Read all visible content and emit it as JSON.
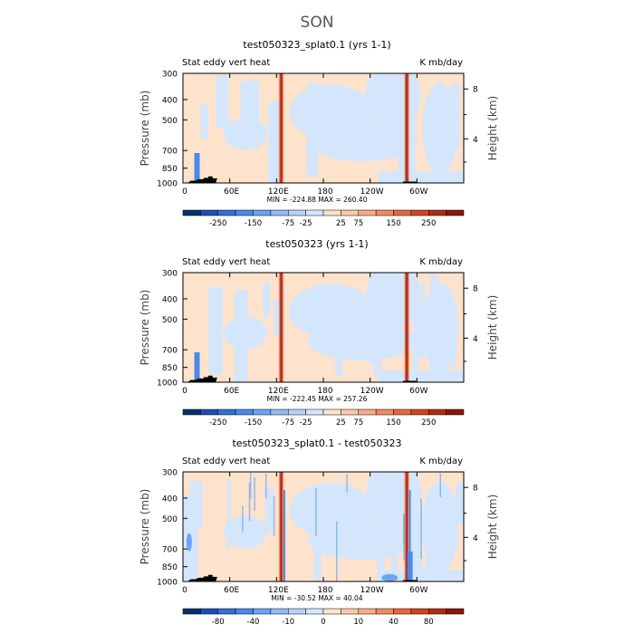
{
  "page_title": "SON",
  "chart_data": [
    {
      "type": "heatmap",
      "title": "test050323_splat0.1 (yrs 1-1)",
      "left_label": "Stat eddy vert heat",
      "right_label": "K mb/day",
      "ylabel": "Pressure (mb)",
      "ylabel_right": "Height (km)",
      "y_ticks": [
        300,
        400,
        500,
        700,
        850,
        1000
      ],
      "y_ticks_right": [
        8,
        4
      ],
      "x_ticks": [
        "0",
        "60E",
        "120E",
        "180",
        "120W",
        "60W"
      ],
      "xlim": [
        0,
        360
      ],
      "ylim": [
        1000,
        300
      ],
      "stats": "MIN = -224.88   MAX = 260.40",
      "colorbar_labels": [
        "-250",
        "-150",
        "-75",
        "-25",
        "25",
        "75",
        "150",
        "250"
      ],
      "features": [
        {
          "lon": 126,
          "value": 260.4
        },
        {
          "lon": 287,
          "value": 200
        },
        {
          "lon": 18,
          "value": -224.88
        }
      ]
    },
    {
      "type": "heatmap",
      "title": "test050323 (yrs 1-1)",
      "left_label": "Stat eddy vert heat",
      "right_label": "K mb/day",
      "ylabel": "Pressure (mb)",
      "ylabel_right": "Height (km)",
      "y_ticks": [
        300,
        400,
        500,
        700,
        850,
        1000
      ],
      "y_ticks_right": [
        8,
        4
      ],
      "x_ticks": [
        "0",
        "60E",
        "120E",
        "180",
        "120W",
        "60W"
      ],
      "xlim": [
        0,
        360
      ],
      "ylim": [
        1000,
        300
      ],
      "stats": "MIN = -222.45   MAX = 257.26",
      "colorbar_labels": [
        "-250",
        "-150",
        "-75",
        "-25",
        "25",
        "75",
        "150",
        "250"
      ],
      "features": [
        {
          "lon": 126,
          "value": 257.26
        },
        {
          "lon": 287,
          "value": 200
        },
        {
          "lon": 18,
          "value": -222.45
        }
      ]
    },
    {
      "type": "heatmap",
      "title": "test050323_splat0.1 - test050323",
      "left_label": "Stat eddy vert heat",
      "right_label": "K mb/day",
      "ylabel": "Pressure (mb)",
      "ylabel_right": "Height (km)",
      "y_ticks": [
        300,
        400,
        500,
        700,
        850,
        1000
      ],
      "y_ticks_right": [
        8,
        4
      ],
      "x_ticks": [
        "0",
        "60E",
        "120E",
        "180",
        "120W",
        "60W"
      ],
      "xlim": [
        0,
        360
      ],
      "ylim": [
        1000,
        300
      ],
      "stats": "MIN = -30.52   MAX =  40.04",
      "colorbar_labels": [
        "-80",
        "-40",
        "-10",
        "0",
        "10",
        "40",
        "80"
      ],
      "features": [
        {
          "lon": 126,
          "value": 40.04
        },
        {
          "lon": 287,
          "value": 40
        },
        {
          "lon": 291,
          "value": -30.52
        }
      ]
    }
  ],
  "colors": {
    "levels": [
      "#08306b",
      "#1a4fb3",
      "#2f6fd8",
      "#4a8ae8",
      "#6aa4f2",
      "#8fbcf6",
      "#b5d3f9",
      "#d4e6fb",
      "#fde2cc",
      "#fcc9a8",
      "#f8ab84",
      "#f28a5f",
      "#e8653d",
      "#d4421f",
      "#b42a12",
      "#8a1608"
    ],
    "positive_bg": "#fde2cc",
    "negative_bg": "#d4e6fb",
    "topography": "#000000"
  }
}
